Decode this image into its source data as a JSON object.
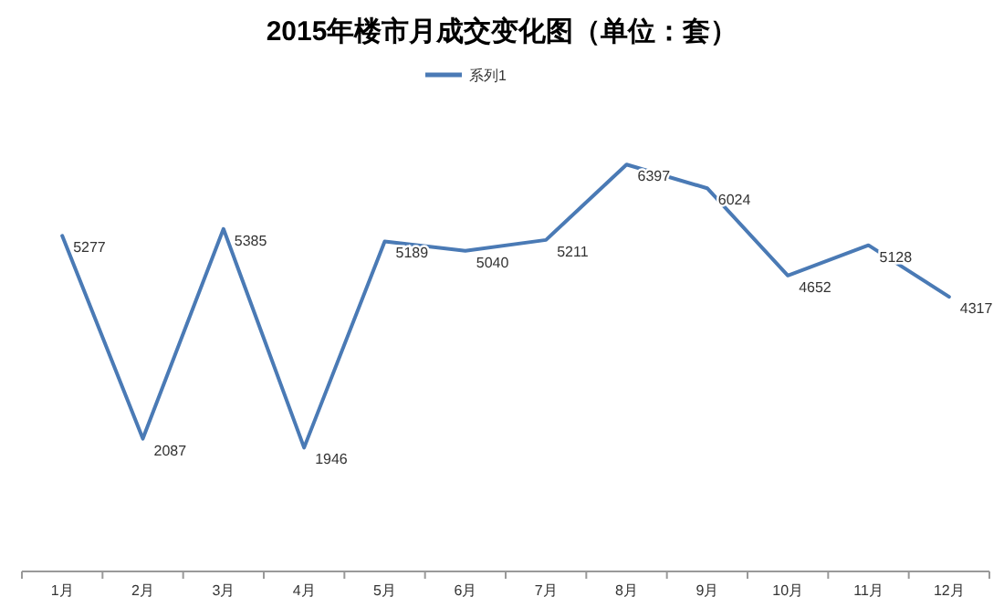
{
  "chart_data": {
    "type": "line",
    "title": "2015年楼市月成交变化图（单位：套）",
    "categories": [
      "1月",
      "2月",
      "3月",
      "4月",
      "5月",
      "6月",
      "7月",
      "8月",
      "9月",
      "10月",
      "11月",
      "12月"
    ],
    "series": [
      {
        "name": "系列1",
        "color": "#4a7ab5",
        "values": [
          5277,
          2087,
          5385,
          1946,
          5189,
          5040,
          5211,
          6397,
          6024,
          4652,
          5128,
          4317
        ]
      }
    ],
    "data_labels": true,
    "legend": "top",
    "grid": false,
    "marker": "none",
    "line_style": "solid"
  }
}
